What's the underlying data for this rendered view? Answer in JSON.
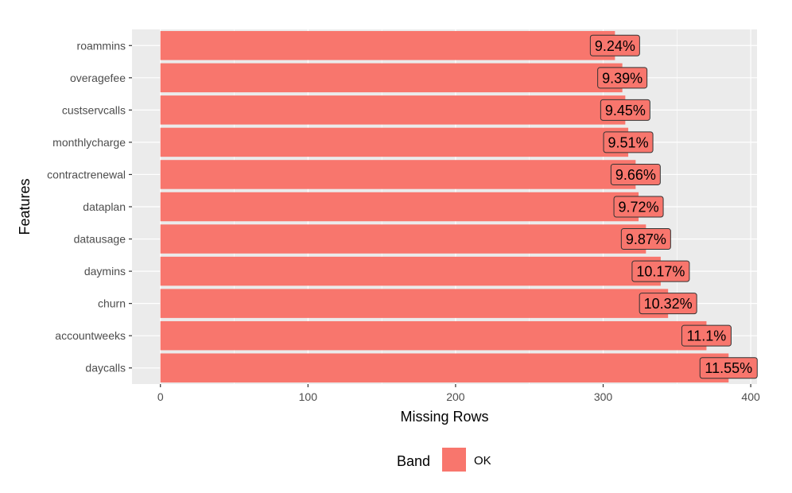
{
  "chart_data": {
    "type": "bar",
    "orientation": "horizontal",
    "categories": [
      "roammins",
      "overagefee",
      "custservcalls",
      "monthlycharge",
      "contractrenewal",
      "dataplan",
      "datausage",
      "daymins",
      "churn",
      "accountweeks",
      "daycalls"
    ],
    "values": [
      308,
      313,
      315,
      317,
      322,
      324,
      329,
      339,
      344,
      370,
      385
    ],
    "labels": [
      "9.24%",
      "9.39%",
      "9.45%",
      "9.51%",
      "9.66%",
      "9.72%",
      "9.87%",
      "10.17%",
      "10.32%",
      "11.1%",
      "11.55%"
    ],
    "xlabel": "Missing Rows",
    "ylabel": "Features",
    "xlim": [
      -19.25,
      404.25
    ],
    "xticks": [
      0,
      100,
      200,
      300,
      400
    ],
    "grid": true,
    "legend": {
      "title": "Band",
      "position": "bottom",
      "entries": [
        {
          "name": "OK",
          "color": "#f8766d"
        }
      ]
    },
    "bar_color": "#f8766d",
    "panel_color": "#ebebeb"
  }
}
